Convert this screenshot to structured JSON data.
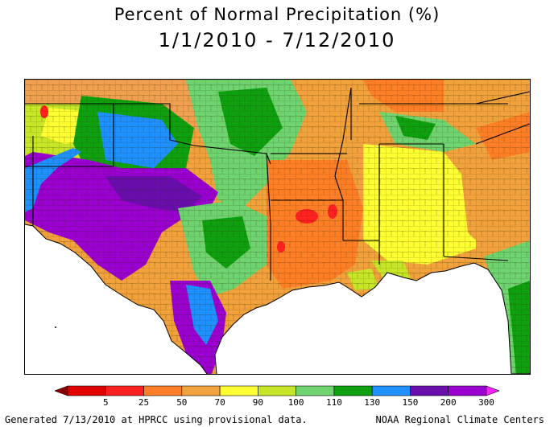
{
  "title_line1": "Percent of Normal Precipitation (%)",
  "title_line2": "1/1/2010 - 7/12/2010",
  "legend": {
    "ticks": [
      "5",
      "25",
      "50",
      "70",
      "90",
      "100",
      "110",
      "130",
      "150",
      "200",
      "300"
    ],
    "colors": [
      "#8b0000",
      "#e00000",
      "#ff2020",
      "#ff7f27",
      "#f2a23c",
      "#ffff33",
      "#c8e628",
      "#6fd36f",
      "#0fa00f",
      "#1e90ff",
      "#6a0dad",
      "#9a00d0",
      "#ff22ff"
    ]
  },
  "footer_left": "Generated 7/13/2010 at HPRCC using provisional data.",
  "footer_right": "NOAA Regional Climate Centers",
  "map": {
    "region": "South-central and southeastern United States",
    "palette": {
      "ocean": "#ffffff",
      "state_line": "#000000",
      "county_line": "#3a3a00"
    }
  }
}
